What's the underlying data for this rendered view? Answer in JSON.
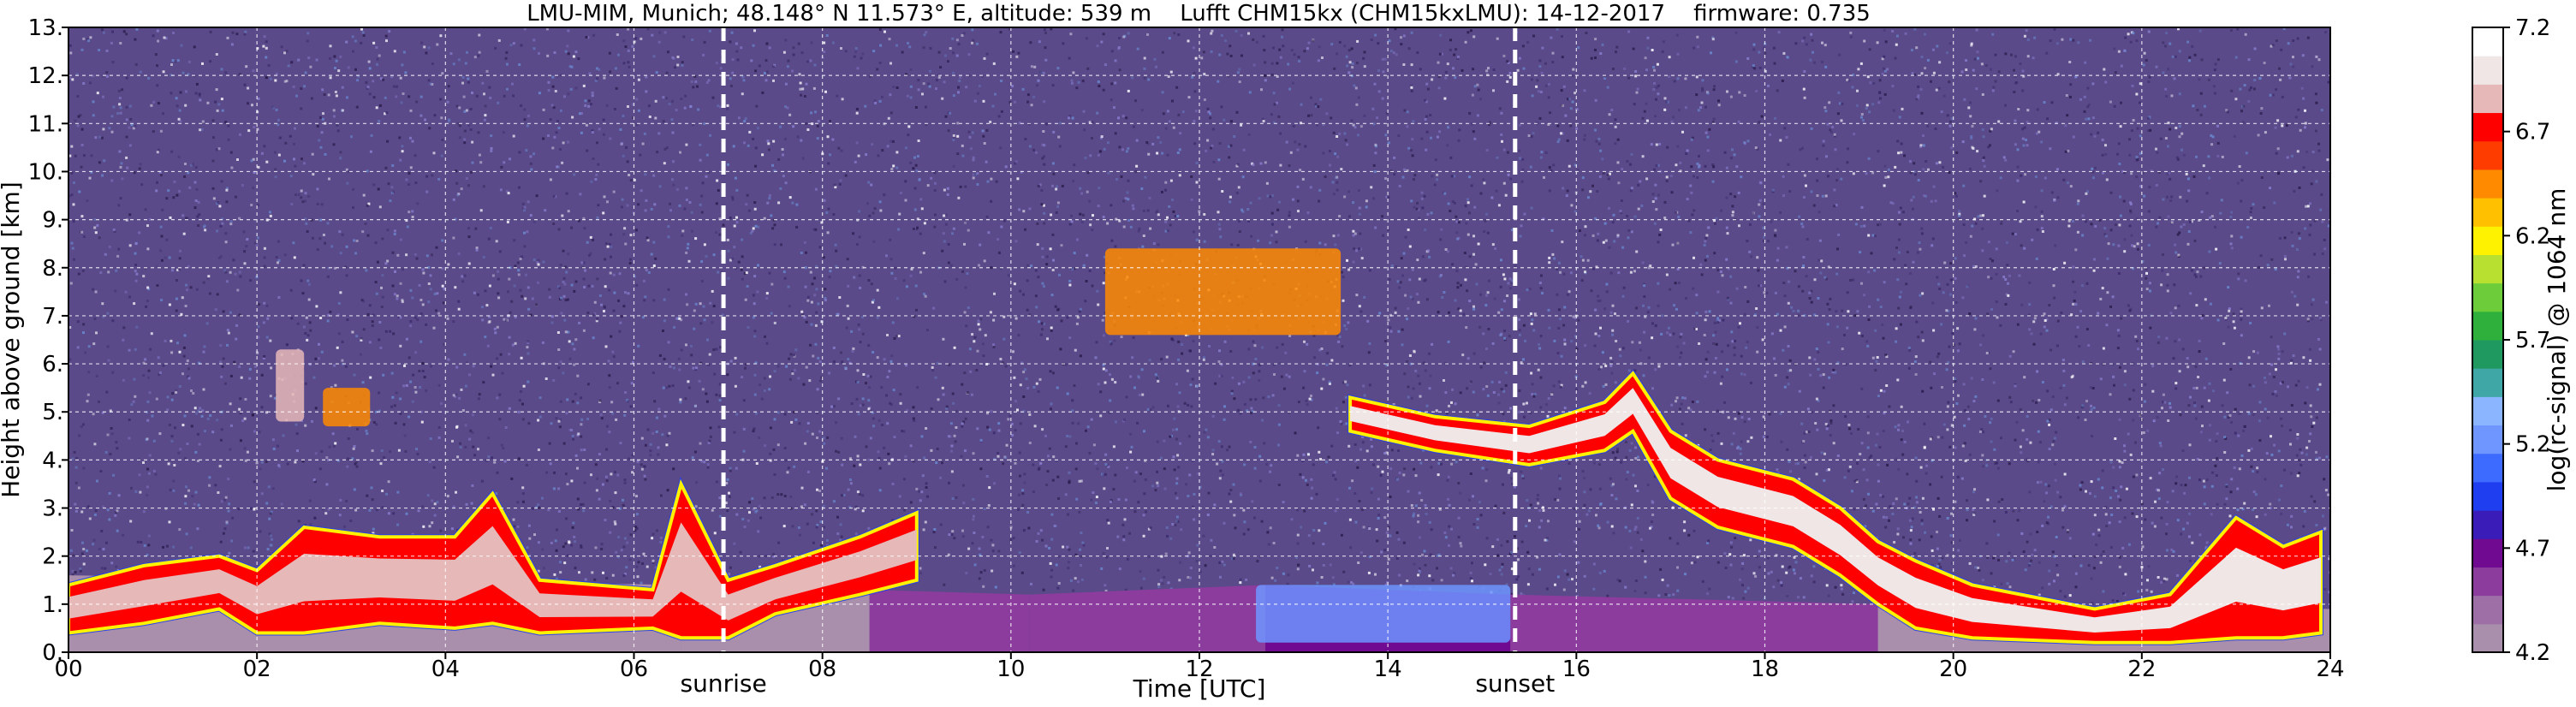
{
  "chart_data": {
    "type": "heatmap",
    "title": "LMU-MIM, Munich; 48.148° N 11.573° E, altitude: 539 m    Lufft CHM15kx (CHM15kxLMU): 14-12-2017    firmware: 0.735",
    "xlabel": "Time [UTC]",
    "ylabel": "Height above ground [km]",
    "xlim": [
      0,
      24
    ],
    "ylim": [
      0,
      13
    ],
    "x_ticks": [
      {
        "value": 0,
        "label": "00"
      },
      {
        "value": 2,
        "label": "02"
      },
      {
        "value": 4,
        "label": "04"
      },
      {
        "value": 6,
        "label": "06"
      },
      {
        "value": 8,
        "label": "08"
      },
      {
        "value": 10,
        "label": "10"
      },
      {
        "value": 12,
        "label": "12"
      },
      {
        "value": 14,
        "label": "14"
      },
      {
        "value": 16,
        "label": "16"
      },
      {
        "value": 18,
        "label": "18"
      },
      {
        "value": 20,
        "label": "20"
      },
      {
        "value": 22,
        "label": "22"
      },
      {
        "value": 24,
        "label": "24"
      }
    ],
    "y_ticks": [
      {
        "value": 0,
        "label": "0."
      },
      {
        "value": 1,
        "label": "1."
      },
      {
        "value": 2,
        "label": "2."
      },
      {
        "value": 3,
        "label": "3."
      },
      {
        "value": 4,
        "label": "4."
      },
      {
        "value": 5,
        "label": "5."
      },
      {
        "value": 6,
        "label": "6."
      },
      {
        "value": 7,
        "label": "7."
      },
      {
        "value": 8,
        "label": "8."
      },
      {
        "value": 9,
        "label": "9."
      },
      {
        "value": 10,
        "label": "10."
      },
      {
        "value": 11,
        "label": "11."
      },
      {
        "value": 12,
        "label": "12."
      },
      {
        "value": 13,
        "label": "13."
      }
    ],
    "grid": true,
    "markers": [
      {
        "label": "sunrise",
        "time": 6.95
      },
      {
        "label": "sunset",
        "time": 15.35
      }
    ],
    "colorbar": {
      "label": "log(rc-signal) @ 1064 nm",
      "range": [
        4.2,
        7.2
      ],
      "ticks": [
        {
          "value": 4.2,
          "label": "4.2"
        },
        {
          "value": 4.7,
          "label": "4.7"
        },
        {
          "value": 5.2,
          "label": "5.2"
        },
        {
          "value": 5.7,
          "label": "5.7"
        },
        {
          "value": 6.2,
          "label": "6.2"
        },
        {
          "value": 6.7,
          "label": "6.7"
        },
        {
          "value": 7.2,
          "label": "7.2"
        }
      ],
      "colors": [
        "#a98fac",
        "#9d6fa6",
        "#8c3c9c",
        "#6f0a91",
        "#3a1db8",
        "#1f3ef0",
        "#3d6bff",
        "#6f95ff",
        "#8cb5ff",
        "#3fa7a6",
        "#1f9960",
        "#2fb03c",
        "#6ccc3a",
        "#b8e030",
        "#fff200",
        "#ffc000",
        "#ff8a00",
        "#ff3c00",
        "#ff0000",
        "#e6b8b8",
        "#f0e6e6",
        "#ffffff"
      ]
    },
    "background_signal": {
      "color": "#5a4a8a",
      "noise_colors": [
        "#ffffff",
        "#8a7fd0",
        "#3a2a6a",
        "#6a8ad0",
        "#2a1a4a"
      ]
    },
    "boundary_layer_band": [
      {
        "t": 0,
        "top": 1.6,
        "color": "#a98fac"
      },
      {
        "t": 6.5,
        "top": 1.4,
        "color": "#a98fac"
      },
      {
        "t": 8.5,
        "top": 1.3,
        "color": "#8c3c9c"
      },
      {
        "t": 10.2,
        "top": 1.2,
        "color": "#8c3c9c"
      },
      {
        "t": 12.7,
        "top": 1.4,
        "color": "#6f0a91"
      },
      {
        "t": 15.3,
        "top": 1.2,
        "color": "#8c3c9c"
      },
      {
        "t": 19.2,
        "top": 1.0,
        "color": "#a98fac"
      },
      {
        "t": 24,
        "top": 0.9,
        "color": "#a98fac"
      }
    ],
    "features": [
      {
        "name": "strong-near-surface-aerosol",
        "t_start": 12.6,
        "t_end": 15.3,
        "h_low": 0.2,
        "h_high": 1.4,
        "level": 5.2
      },
      {
        "name": "mid-cloud-layer",
        "points": [
          [
            13.6,
            5.3,
            4.6
          ],
          [
            14.5,
            4.9,
            4.2
          ],
          [
            15.5,
            4.7,
            3.9
          ],
          [
            16.3,
            5.2,
            4.2
          ],
          [
            16.6,
            5.8,
            4.6
          ],
          [
            17.0,
            4.6,
            3.2
          ],
          [
            17.5,
            4.0,
            2.6
          ],
          [
            18.3,
            3.6,
            2.2
          ],
          [
            18.8,
            3.0,
            1.6
          ],
          [
            19.2,
            2.3,
            1.0
          ],
          [
            19.6,
            1.9,
            0.5
          ],
          [
            20.2,
            1.4,
            0.3
          ],
          [
            21.5,
            0.9,
            0.2
          ],
          [
            22.3,
            1.2,
            0.2
          ],
          [
            23.0,
            2.8,
            0.3
          ],
          [
            23.5,
            2.2,
            0.3
          ],
          [
            23.9,
            2.5,
            0.4
          ]
        ],
        "level": 7.0
      },
      {
        "name": "high-cloud",
        "t_start": 11.0,
        "t_end": 13.5,
        "h_low": 6.6,
        "h_high": 8.4,
        "level": 6.5
      },
      {
        "name": "low-cloud-morning",
        "points": [
          [
            0.0,
            1.4,
            0.4
          ],
          [
            0.8,
            1.8,
            0.6
          ],
          [
            1.6,
            2.0,
            0.9
          ],
          [
            2.0,
            1.7,
            0.4
          ],
          [
            2.5,
            2.6,
            0.4
          ],
          [
            3.3,
            2.4,
            0.6
          ],
          [
            4.1,
            2.4,
            0.5
          ],
          [
            4.5,
            3.3,
            0.6
          ],
          [
            5.0,
            1.5,
            0.4
          ],
          [
            6.2,
            1.3,
            0.5
          ],
          [
            6.5,
            3.5,
            0.3
          ],
          [
            7.0,
            1.5,
            0.3
          ],
          [
            7.5,
            1.8,
            0.8
          ],
          [
            8.4,
            2.4,
            1.2
          ],
          [
            9.0,
            2.9,
            1.5
          ]
        ],
        "level": 6.8
      },
      {
        "name": "cloud-02h",
        "t_start": 2.2,
        "t_end": 2.5,
        "h_low": 4.8,
        "h_high": 6.3,
        "level": 6.8
      },
      {
        "name": "cloud-03h",
        "t_start": 2.7,
        "t_end": 3.2,
        "h_low": 4.7,
        "h_high": 5.5,
        "level": 6.5
      }
    ]
  }
}
